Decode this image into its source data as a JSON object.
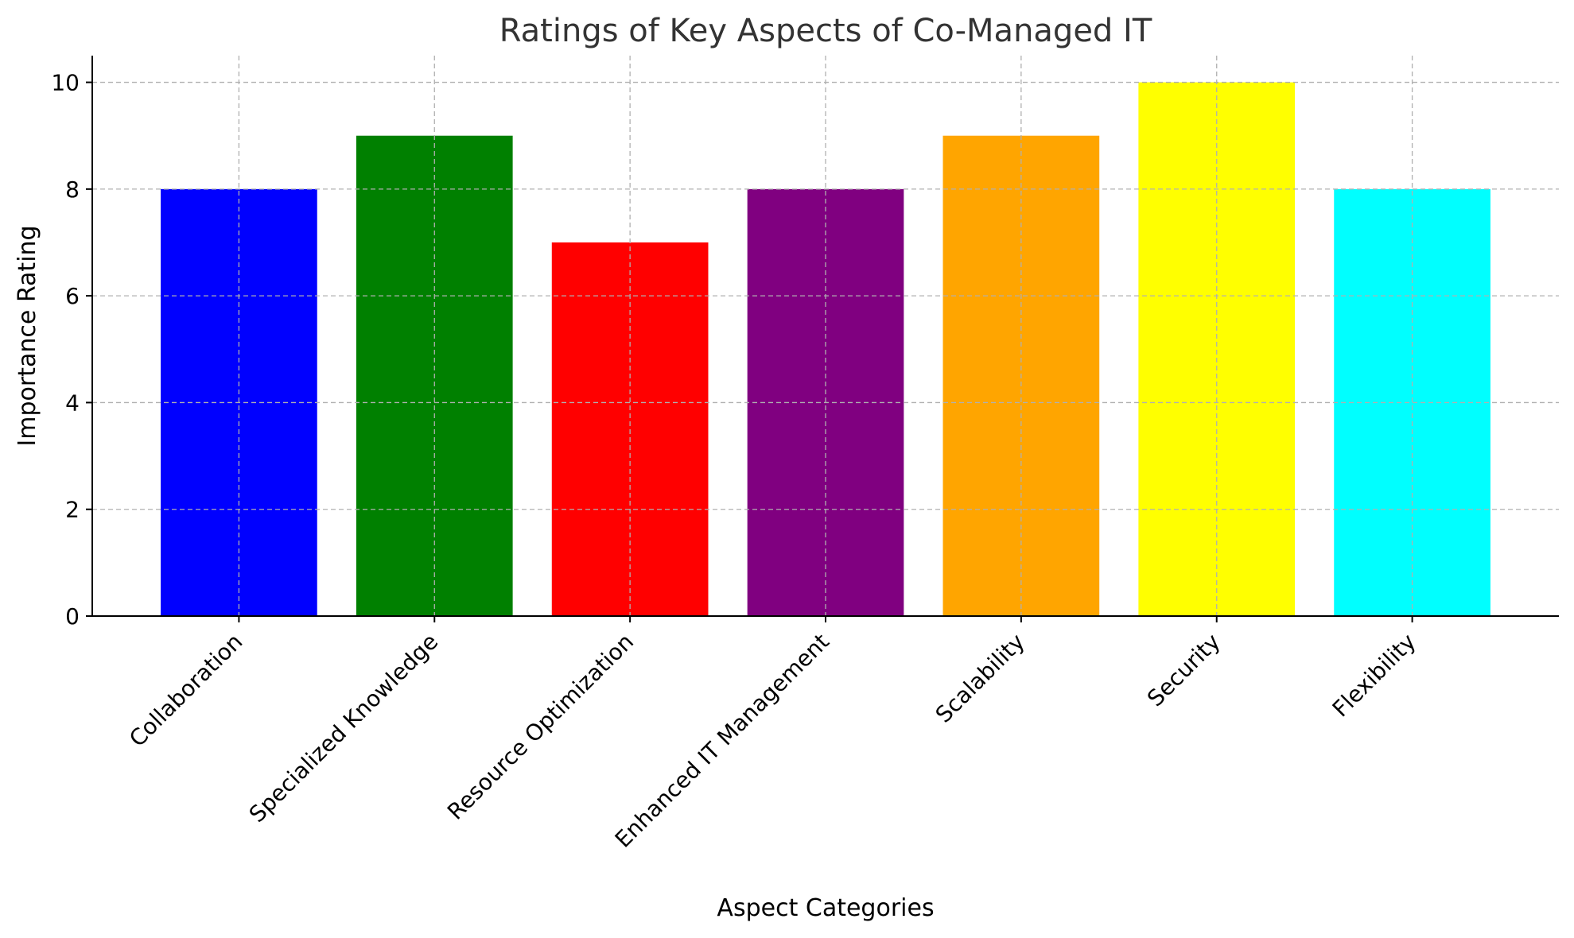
{
  "chart_data": {
    "type": "bar",
    "title": "Ratings of Key Aspects of Co-Managed IT",
    "xlabel": "Aspect Categories",
    "ylabel": "Importance Rating",
    "categories": [
      "Collaboration",
      "Specialized Knowledge",
      "Resource Optimization",
      "Enhanced IT Management",
      "Scalability",
      "Security",
      "Flexibility"
    ],
    "values": [
      8,
      9,
      7,
      8,
      9,
      10,
      8
    ],
    "colors": [
      "#0000ff",
      "#008000",
      "#ff0000",
      "#800080",
      "#ffa500",
      "#ffff00",
      "#00ffff"
    ],
    "ylim": [
      0,
      10.5
    ],
    "yticks": [
      0,
      2,
      4,
      6,
      8,
      10
    ],
    "grid": true,
    "legend": "none"
  }
}
